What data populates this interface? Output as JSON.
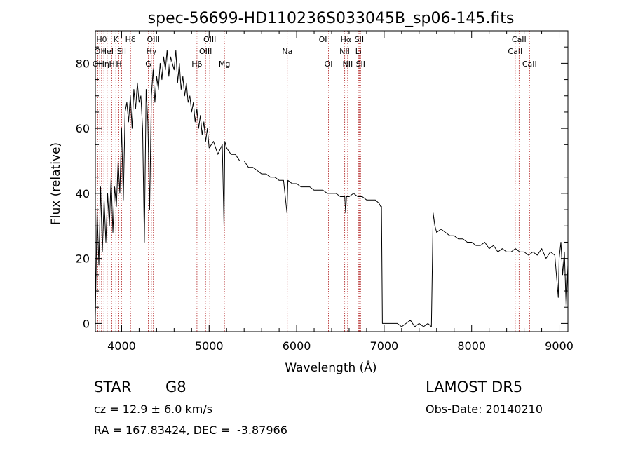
{
  "chart_data": {
    "type": "line",
    "title": "spec-56699-HD110236S033045B_sp06-145.fits",
    "xlabel": "Wavelength (Å)",
    "ylabel": "Flux (relative)",
    "xlim": [
      3700,
      9100
    ],
    "ylim": [
      -2.5,
      90
    ],
    "xticks": [
      4000,
      5000,
      6000,
      7000,
      8000,
      9000
    ],
    "yticks": [
      0,
      20,
      40,
      60,
      80
    ],
    "line_color": "#000000",
    "marker_line_color": "#b22222",
    "series": [
      {
        "x": [
          3700,
          3720,
          3740,
          3760,
          3780,
          3800,
          3820,
          3840,
          3860,
          3880,
          3900,
          3920,
          3940,
          3960,
          3980,
          4000,
          4020,
          4040,
          4060,
          4080,
          4100,
          4120,
          4140,
          4160,
          4180,
          4200,
          4220,
          4240,
          4260,
          4280,
          4300,
          4320,
          4340,
          4360,
          4380,
          4400,
          4420,
          4440,
          4460,
          4480,
          4500,
          4520,
          4540,
          4560,
          4580,
          4600,
          4620,
          4640,
          4660,
          4680,
          4700,
          4720,
          4740,
          4760,
          4780,
          4800,
          4820,
          4840,
          4860,
          4880,
          4900,
          4920,
          4940,
          4960,
          4980,
          5000,
          5050,
          5100,
          5150,
          5170,
          5180,
          5200,
          5250,
          5300,
          5350,
          5400,
          5450,
          5500,
          5550,
          5600,
          5650,
          5700,
          5750,
          5800,
          5850,
          5890,
          5900,
          5950,
          6000,
          6050,
          6100,
          6150,
          6200,
          6250,
          6300,
          6350,
          6400,
          6450,
          6500,
          6550,
          6560,
          6570,
          6600,
          6650,
          6700,
          6750,
          6800,
          6850,
          6900,
          6940,
          6960,
          6970,
          6980,
          7000,
          7100,
          7150,
          7200,
          7250,
          7300,
          7350,
          7400,
          7450,
          7500,
          7540,
          7560,
          7580,
          7600,
          7650,
          7700,
          7750,
          7800,
          7850,
          7900,
          7950,
          8000,
          8050,
          8100,
          8150,
          8200,
          8250,
          8300,
          8350,
          8400,
          8450,
          8500,
          8550,
          8600,
          8650,
          8700,
          8750,
          8800,
          8850,
          8900,
          8950,
          8990,
          9000,
          9020,
          9040,
          9060,
          9080,
          9100
        ],
        "y": [
          2,
          35,
          18,
          42,
          22,
          38,
          25,
          40,
          30,
          45,
          28,
          42,
          36,
          50,
          40,
          60,
          38,
          65,
          68,
          62,
          70,
          60,
          72,
          66,
          74,
          68,
          70,
          60,
          25,
          72,
          62,
          35,
          70,
          78,
          68,
          76,
          72,
          80,
          75,
          82,
          78,
          84,
          76,
          82,
          80,
          78,
          84,
          74,
          80,
          72,
          76,
          70,
          74,
          68,
          70,
          65,
          68,
          62,
          66,
          60,
          64,
          58,
          62,
          56,
          60,
          54,
          56,
          52,
          55,
          30,
          56,
          54,
          52,
          52,
          50,
          50,
          48,
          48,
          47,
          46,
          46,
          45,
          45,
          44,
          44,
          34,
          44,
          43,
          43,
          42,
          42,
          42,
          41,
          41,
          41,
          40,
          40,
          40,
          39,
          39,
          34,
          39,
          39,
          40,
          39,
          39,
          38,
          38,
          38,
          37,
          36,
          36,
          0,
          0,
          0,
          0,
          -1,
          0,
          1,
          -1,
          0,
          -1,
          0,
          -1,
          34,
          30,
          28,
          29,
          28,
          27,
          27,
          26,
          26,
          25,
          25,
          24,
          24,
          25,
          23,
          24,
          22,
          23,
          22,
          22,
          23,
          22,
          22,
          21,
          22,
          21,
          23,
          20,
          22,
          21,
          8,
          20,
          25,
          15,
          22,
          5,
          18
        ]
      }
    ],
    "line_markers": [
      {
        "wavelength": 3727,
        "labels": [
          "OII"
        ],
        "row": 3
      },
      {
        "wavelength": 3750,
        "labels": [
          "OII"
        ],
        "row": 2
      },
      {
        "wavelength": 3771,
        "labels": [
          "Hθ"
        ],
        "row": 1
      },
      {
        "wavelength": 3798,
        "labels": [
          "Hη"
        ],
        "row": 3
      },
      {
        "wavelength": 3835,
        "labels": [
          "HeI"
        ],
        "row": 2
      },
      {
        "wavelength": 3889,
        "labels": [
          "H"
        ],
        "row": 3
      },
      {
        "wavelength": 3934,
        "labels": [
          "K"
        ],
        "row": 1
      },
      {
        "wavelength": 3969,
        "labels": [
          "H"
        ],
        "row": 3
      },
      {
        "wavelength": 4000,
        "labels": [
          "SII"
        ],
        "row": 2
      },
      {
        "wavelength": 4102,
        "labels": [
          "Hδ"
        ],
        "row": 1
      },
      {
        "wavelength": 4305,
        "labels": [
          "G"
        ],
        "row": 3
      },
      {
        "wavelength": 4340,
        "labels": [
          "Hγ"
        ],
        "row": 2
      },
      {
        "wavelength": 4363,
        "labels": [
          "OIII"
        ],
        "row": 1
      },
      {
        "wavelength": 4861,
        "labels": [
          "Hβ"
        ],
        "row": 3
      },
      {
        "wavelength": 4959,
        "labels": [
          "OIII"
        ],
        "row": 2
      },
      {
        "wavelength": 5007,
        "labels": [
          "OIII"
        ],
        "row": 1
      },
      {
        "wavelength": 5175,
        "labels": [
          "Mg"
        ],
        "row": 3
      },
      {
        "wavelength": 5893,
        "labels": [
          "Na"
        ],
        "row": 2
      },
      {
        "wavelength": 6300,
        "labels": [
          "OI"
        ],
        "row": 1
      },
      {
        "wavelength": 6364,
        "labels": [
          "OI"
        ],
        "row": 3
      },
      {
        "wavelength": 6548,
        "labels": [
          "NII"
        ],
        "row": 2
      },
      {
        "wavelength": 6563,
        "labels": [
          "Hα"
        ],
        "row": 1
      },
      {
        "wavelength": 6583,
        "labels": [
          "NII"
        ],
        "row": 3
      },
      {
        "wavelength": 6707,
        "labels": [
          "Li"
        ],
        "row": 2
      },
      {
        "wavelength": 6716,
        "labels": [
          "SII"
        ],
        "row": 1
      },
      {
        "wavelength": 6731,
        "labels": [
          "SII"
        ],
        "row": 3
      },
      {
        "wavelength": 8498,
        "labels": [
          "CaII"
        ],
        "row": 2
      },
      {
        "wavelength": 8542,
        "labels": [
          "CaII"
        ],
        "row": 1
      },
      {
        "wavelength": 8662,
        "labels": [
          "CaII"
        ],
        "row": 3
      }
    ]
  },
  "info": {
    "class_label": "STAR",
    "subclass": "G8",
    "survey": "LAMOST DR5",
    "cz": "cz = 12.9 ± 6.0 km/s",
    "obs_date": "Obs-Date: 20140210",
    "coords": "RA = 167.83424, DEC =  -3.87966"
  }
}
